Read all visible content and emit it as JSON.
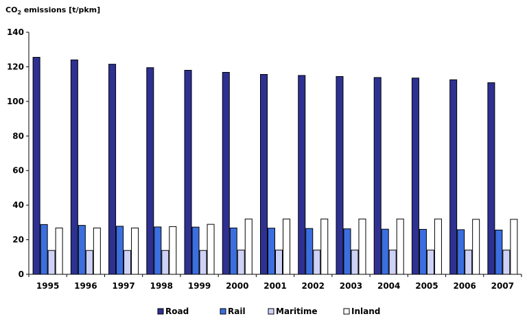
{
  "chart_data": {
    "type": "bar",
    "ylabel_main": "CO",
    "ylabel_sub": "2",
    "ylabel_rest": " emissions [t/pkm]",
    "categories": [
      "1995",
      "1996",
      "1997",
      "1998",
      "1999",
      "2000",
      "2001",
      "2002",
      "2003",
      "2004",
      "2005",
      "2006",
      "2007"
    ],
    "ylim": [
      0,
      140
    ],
    "yticks": [
      "0",
      "20",
      "40",
      "60",
      "80",
      "100",
      "120",
      "140"
    ],
    "legend_position": "bottom",
    "series": [
      {
        "name": "Road",
        "color": "#2e3192",
        "values": [
          125.5,
          124.0,
          121.5,
          119.5,
          118.0,
          116.8,
          115.6,
          115.0,
          114.4,
          113.8,
          113.5,
          112.5,
          110.8
        ]
      },
      {
        "name": "Rail",
        "color": "#3b6fe0",
        "values": [
          28.8,
          28.3,
          27.8,
          27.4,
          27.3,
          26.8,
          26.7,
          26.5,
          26.3,
          26.1,
          26.0,
          25.8,
          25.6
        ]
      },
      {
        "name": "Maritime",
        "color": "#cfd2f7",
        "values": [
          13.8,
          13.8,
          13.8,
          13.8,
          13.8,
          14.0,
          14.0,
          14.0,
          14.0,
          14.0,
          14.0,
          14.0,
          14.0
        ]
      },
      {
        "name": "Inland",
        "color": "#ffffff",
        "values": [
          26.8,
          26.8,
          26.8,
          27.6,
          28.9,
          32.0,
          32.0,
          32.0,
          32.0,
          32.0,
          32.0,
          31.8,
          31.8
        ]
      }
    ]
  }
}
